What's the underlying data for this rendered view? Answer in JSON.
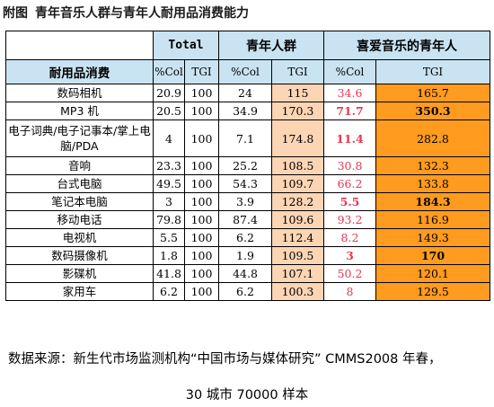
{
  "title": {
    "prefix": "附图",
    "text": "青年音乐人群与青年人耐用品消费能力"
  },
  "chart_data": {
    "type": "table",
    "groups": [
      "Total",
      "青年人群",
      "喜爱音乐的青年人"
    ],
    "row_header": "耐用品消费",
    "sub_headers": [
      "%Col",
      "TGI",
      "%Col",
      "TGI",
      "%Col",
      "TGI"
    ],
    "rows": [
      {
        "name": "数码相机",
        "values": [
          "20.9",
          "100",
          "24",
          "115",
          "34.6",
          "165.7"
        ],
        "bold": [
          false,
          false
        ]
      },
      {
        "name": "MP3 机",
        "values": [
          "20.5",
          "100",
          "34.9",
          "170.3",
          "71.7",
          "350.3"
        ],
        "bold": [
          true,
          true
        ]
      },
      {
        "name": "电子词典/电子记事本/掌上电脑/PDA",
        "values": [
          "4",
          "100",
          "7.1",
          "174.8",
          "11.4",
          "282.8"
        ],
        "bold": [
          true,
          false
        ]
      },
      {
        "name": "音响",
        "values": [
          "23.3",
          "100",
          "25.2",
          "108.5",
          "30.8",
          "132.3"
        ],
        "bold": [
          false,
          false
        ]
      },
      {
        "name": "台式电脑",
        "values": [
          "49.5",
          "100",
          "54.3",
          "109.7",
          "66.2",
          "133.8"
        ],
        "bold": [
          false,
          false
        ]
      },
      {
        "name": "笔记本电脑",
        "values": [
          "3",
          "100",
          "3.9",
          "128.2",
          "5.5",
          "184.3"
        ],
        "bold": [
          true,
          true
        ]
      },
      {
        "name": "移动电话",
        "values": [
          "79.8",
          "100",
          "87.4",
          "109.6",
          "93.2",
          "116.9"
        ],
        "bold": [
          false,
          false
        ]
      },
      {
        "name": "电视机",
        "values": [
          "5.5",
          "100",
          "6.2",
          "112.4",
          "8.2",
          "149.3"
        ],
        "bold": [
          false,
          false
        ]
      },
      {
        "name": "数码摄像机",
        "values": [
          "1.8",
          "100",
          "1.9",
          "109.5",
          "3",
          "170"
        ],
        "bold": [
          true,
          true
        ]
      },
      {
        "name": "影碟机",
        "values": [
          "41.8",
          "100",
          "44.8",
          "107.1",
          "50.2",
          "120.1"
        ],
        "bold": [
          false,
          false
        ]
      },
      {
        "name": "家用车",
        "values": [
          "6.2",
          "100",
          "6.2",
          "100.3",
          "8",
          "129.5"
        ],
        "bold": [
          false,
          false
        ]
      }
    ],
    "colors": {
      "header_bg": "#c9e3f2",
      "young_tgi_bg": "#fcd5b4",
      "music_tgi_bg": "#ff9b1f",
      "music_pct_text": "#e8384f"
    }
  },
  "footer": {
    "line1": "数据来源：新生代市场监测机构“中国市场与媒体研究”  CMMS2008 年春，",
    "line2": "30 城市 70000 样本"
  }
}
